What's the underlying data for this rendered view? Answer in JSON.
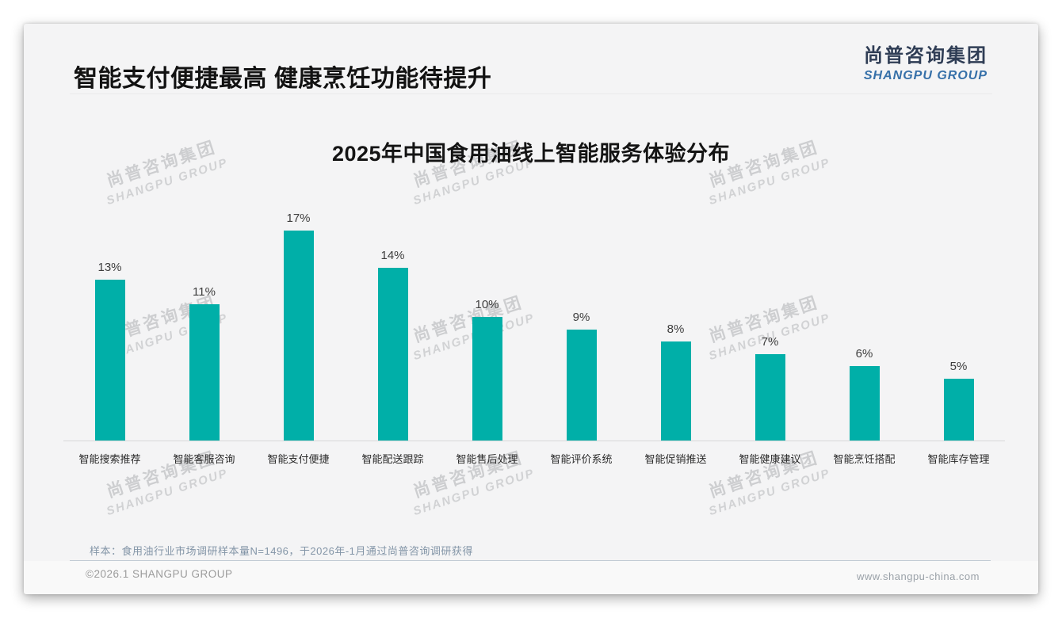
{
  "page": {
    "header_title": "智能支付便捷最高 健康烹饪功能待提升",
    "logo": {
      "cn": "尚普咨询集团",
      "en": "SHANGPU GROUP"
    },
    "watermark": {
      "line1": "尚普咨询集团",
      "line2": "SHANGPU GROUP"
    },
    "footnote": "样本：食用油行业市场调研样本量N=1496，于2026年-1月通过尚普咨询调研获得",
    "copyright": "©2026.1 SHANGPU GROUP",
    "website": "www.shangpu-china.com"
  },
  "chart_data": {
    "type": "bar",
    "title": "2025年中国食用油线上智能服务体验分布",
    "categories": [
      "智能搜索推荐",
      "智能客服咨询",
      "智能支付便捷",
      "智能配送跟踪",
      "智能售后处理",
      "智能评价系统",
      "智能促销推送",
      "智能健康建议",
      "智能烹饪搭配",
      "智能库存管理"
    ],
    "values": [
      13,
      11,
      17,
      14,
      10,
      9,
      8,
      7,
      6,
      5
    ],
    "unit": "%",
    "bar_color": "#00AFA8",
    "ylim": [
      0,
      18
    ],
    "grid": false,
    "legend": false,
    "value_label_position": "above-bar"
  }
}
